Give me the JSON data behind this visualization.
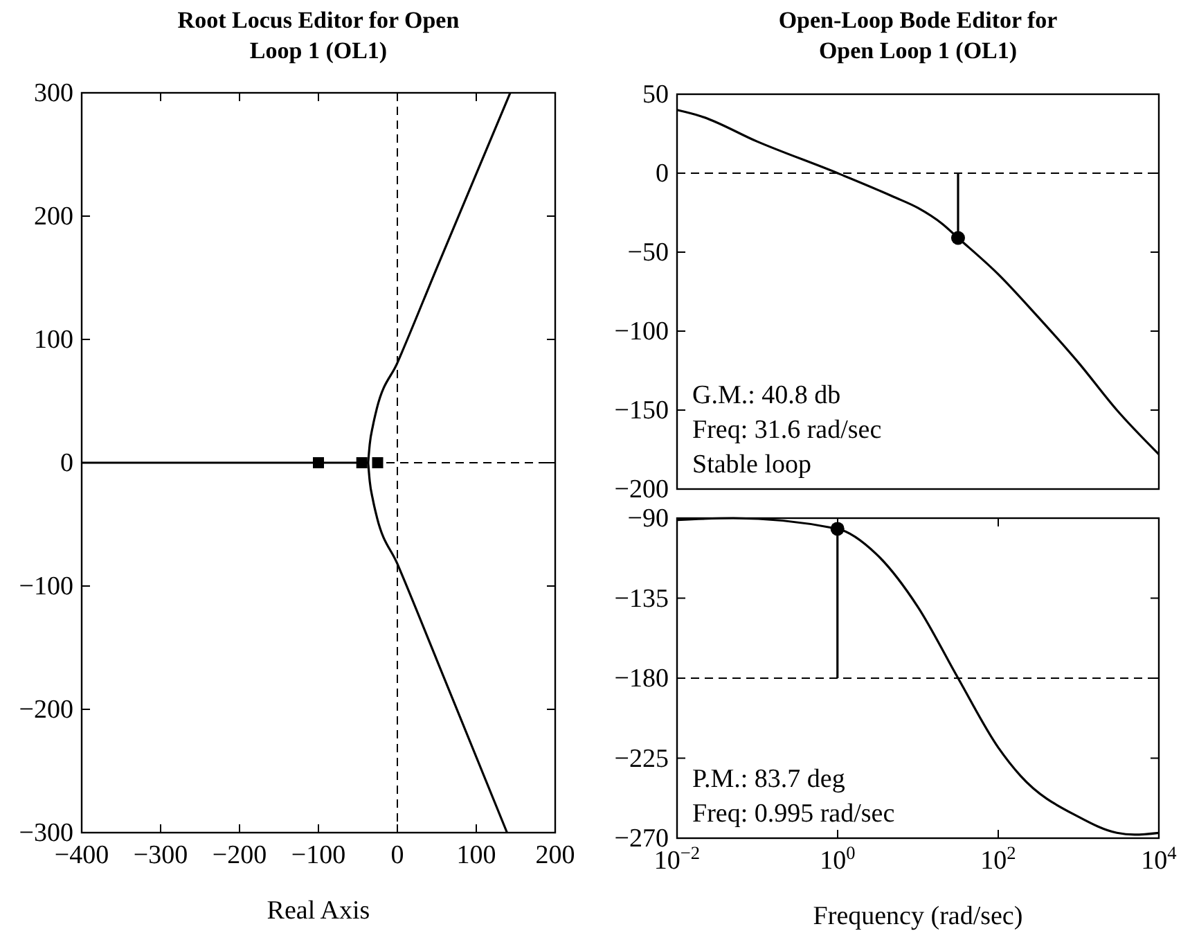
{
  "chart_data": [
    {
      "type": "line",
      "title": "Root Locus Editor for Open Loop 1 (OL1)",
      "xlabel": "Real Axis",
      "xlim": [
        -400,
        200
      ],
      "ylim": [
        -300,
        300
      ],
      "xticks": [
        -400,
        -300,
        -200,
        -100,
        0,
        100,
        200
      ],
      "yticks": [
        -300,
        -200,
        -100,
        0,
        100,
        200,
        300
      ],
      "grid": false,
      "series": [
        {
          "color": "#000000",
          "x": [
            -37,
            -35,
            -31,
            -26,
            0,
            50,
            143
          ],
          "values": [
            0,
            15,
            30,
            44,
            81,
            158,
            300
          ]
        },
        {
          "color": "#000000",
          "x": [
            -37,
            -35,
            -31,
            -26,
            0,
            50,
            139
          ],
          "values": [
            0,
            -15,
            -30,
            -44,
            -82,
            -160,
            -300
          ]
        },
        {
          "color": "#000000",
          "x": [
            -400,
            -37
          ],
          "values": [
            0,
            0
          ]
        },
        {
          "type": "scatter",
          "marker": "square",
          "color": "#000000",
          "x": [
            -100,
            -45,
            -25
          ],
          "values": [
            0,
            0,
            0
          ]
        }
      ],
      "ref_lines": [
        {
          "axis": "x",
          "value": 0,
          "line_style": "dashed",
          "color": "#000000"
        },
        {
          "axis": "y",
          "value": 0,
          "line_style": "dashed",
          "color": "#000000"
        }
      ]
    },
    {
      "type": "line",
      "title": "Open-Loop Bode Editor for Open Loop 1 (OL1)",
      "log": "x",
      "xlim": [
        0.01,
        10000
      ],
      "ylim": [
        -200,
        50
      ],
      "yticks": [
        -200,
        -150,
        -100,
        -50,
        0,
        50
      ],
      "tick_labels": "y",
      "grid": false,
      "series": [
        {
          "color": "#000000",
          "x": [
            0.01,
            0.02,
            0.1,
            1,
            5,
            10,
            20,
            31.6,
            100,
            300,
            1000,
            3000,
            10000
          ],
          "values": [
            40,
            36,
            20,
            0,
            -15,
            -22,
            -32,
            -41,
            -64,
            -90,
            -120,
            -150,
            -178
          ]
        },
        {
          "color": "#000000",
          "x": [
            31.6,
            31.6
          ],
          "values": [
            -41,
            0
          ]
        },
        {
          "type": "scatter",
          "marker": "circle",
          "color": "#000000",
          "x": [
            31.6
          ],
          "values": [
            -41
          ]
        }
      ],
      "ref_lines": [
        {
          "axis": "y",
          "value": 0,
          "line_style": "dashed",
          "color": "#000000"
        }
      ],
      "annotations": [
        "G.M.: 40.8 db",
        "Freq: 31.6 rad/sec",
        "Stable loop"
      ]
    },
    {
      "type": "line",
      "xlabel": "Frequency (rad/sec)",
      "log": "x",
      "xlim": [
        0.01,
        10000
      ],
      "ylim": [
        -270,
        -90
      ],
      "xticks": [
        {
          "value": 0.01,
          "label": "10$^{−2}$"
        },
        {
          "value": 1,
          "label": "10$^{0}$"
        },
        {
          "value": 100,
          "label": "10$^{2}$"
        },
        {
          "value": 10000,
          "label": "10$^{4}$"
        }
      ],
      "yticks": [
        -270,
        -225,
        -180,
        -135,
        -90
      ],
      "grid": false,
      "series": [
        {
          "color": "#000000",
          "x": [
            0.01,
            0.05,
            0.995,
            3,
            10,
            31.6,
            100,
            190,
            1000,
            3000,
            5000,
            10000
          ],
          "values": [
            -91,
            -90,
            -96,
            -110,
            -140,
            -180,
            -219,
            -235,
            -258,
            -267,
            -268,
            -267
          ]
        },
        {
          "color": "#000000",
          "x": [
            0.995,
            0.995
          ],
          "values": [
            -96,
            -180
          ]
        },
        {
          "type": "scatter",
          "marker": "circle",
          "color": "#000000",
          "x": [
            0.995
          ],
          "values": [
            -96
          ]
        }
      ],
      "ref_lines": [
        {
          "axis": "y",
          "value": -180,
          "line_style": "dashed",
          "color": "#000000"
        }
      ],
      "annotations": [
        "P.M.: 83.7 deg",
        "Freq: 0.995 rad/sec"
      ]
    }
  ]
}
